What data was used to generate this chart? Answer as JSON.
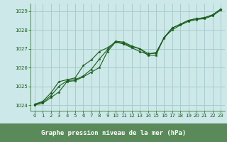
{
  "title": "Graphe pression niveau de la mer (hPa)",
  "background_color": "#cce8e8",
  "plot_bg_color": "#cce8e8",
  "bottom_bar_color": "#5a8a5a",
  "grid_color": "#aacccc",
  "line_color": "#1a5e1a",
  "marker_color": "#1a5e1a",
  "xlim": [
    -0.5,
    23.5
  ],
  "ylim": [
    1023.7,
    1029.4
  ],
  "xticks": [
    0,
    1,
    2,
    3,
    4,
    5,
    6,
    7,
    8,
    9,
    10,
    11,
    12,
    13,
    14,
    15,
    16,
    17,
    18,
    19,
    20,
    21,
    22,
    23
  ],
  "yticks": [
    1024,
    1025,
    1026,
    1027,
    1028,
    1029
  ],
  "series1": {
    "x": [
      0,
      1,
      2,
      3,
      4,
      5,
      6,
      7,
      8,
      9,
      10,
      11,
      12,
      13,
      14,
      15,
      16,
      17,
      18,
      19,
      20,
      21,
      22,
      23
    ],
    "y": [
      1024.0,
      1024.1,
      1024.4,
      1024.7,
      1025.25,
      1025.3,
      1025.5,
      1025.75,
      1026.0,
      1026.85,
      1027.35,
      1027.25,
      1027.05,
      1026.85,
      1026.7,
      1026.8,
      1027.55,
      1028.1,
      1028.3,
      1028.5,
      1028.6,
      1028.65,
      1028.8,
      1029.1
    ]
  },
  "series2": {
    "x": [
      0,
      1,
      2,
      3,
      4,
      5,
      6,
      7,
      8,
      9,
      10,
      11,
      12,
      13,
      14,
      15,
      16,
      17,
      18,
      19,
      20,
      21,
      22,
      23
    ],
    "y": [
      1024.05,
      1024.2,
      1024.65,
      1025.25,
      1025.35,
      1025.45,
      1026.1,
      1026.4,
      1026.85,
      1027.05,
      1027.35,
      1027.3,
      1027.1,
      1027.0,
      1026.75,
      1026.75,
      1027.6,
      1028.1,
      1028.3,
      1028.5,
      1028.6,
      1028.65,
      1028.8,
      1029.1
    ]
  },
  "series3": {
    "x": [
      0,
      1,
      2,
      3,
      4,
      5,
      6,
      7,
      8,
      9,
      10,
      11,
      12,
      13,
      14,
      15,
      16,
      17,
      18,
      19,
      20,
      21,
      22,
      23
    ],
    "y": [
      1024.05,
      1024.15,
      1024.5,
      1025.0,
      1025.3,
      1025.35,
      1025.55,
      1025.9,
      1026.45,
      1026.95,
      1027.4,
      1027.35,
      1027.15,
      1027.0,
      1026.65,
      1026.65,
      1027.6,
      1028.0,
      1028.25,
      1028.45,
      1028.55,
      1028.6,
      1028.75,
      1029.05
    ]
  }
}
